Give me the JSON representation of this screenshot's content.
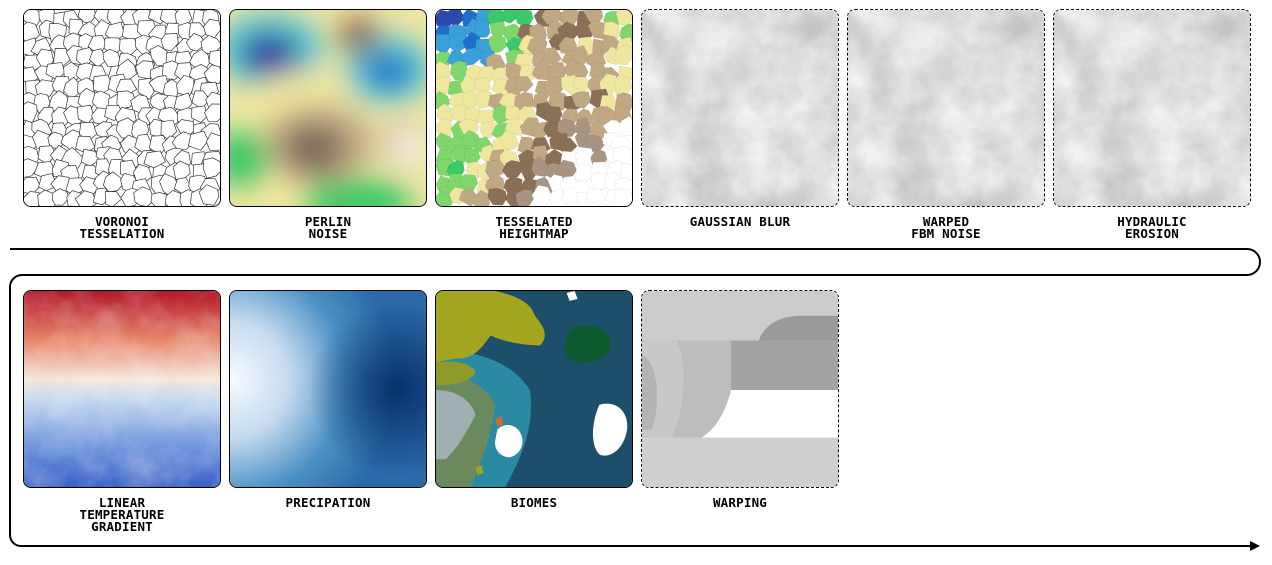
{
  "row1": [
    {
      "id": "voronoi",
      "lines": [
        "VORONOI",
        "TESSELATION"
      ],
      "border": "solid",
      "icon": "voronoi-cells"
    },
    {
      "id": "perlin",
      "lines": [
        "PERLIN",
        "NOISE"
      ],
      "border": "solid",
      "icon": "perlin-noise-terrain"
    },
    {
      "id": "tesselated",
      "lines": [
        "TESSELATED",
        "HEIGHTMAP"
      ],
      "border": "solid",
      "icon": "tesselated-heightmap"
    },
    {
      "id": "gaussian",
      "lines": [
        "GAUSSIAN BLUR"
      ],
      "border": "dashed",
      "icon": "grayscale-clouds"
    },
    {
      "id": "warped",
      "lines": [
        "WARPED",
        "FBM NOISE"
      ],
      "border": "dashed",
      "icon": "grayscale-clouds"
    },
    {
      "id": "hydraulic",
      "lines": [
        "HYDRAULIC",
        "EROSION"
      ],
      "border": "dashed",
      "icon": "grayscale-clouds"
    }
  ],
  "row2": [
    {
      "id": "temperature",
      "lines": [
        "LINEAR",
        "TEMPERATURE",
        "GRADIENT"
      ],
      "border": "solid",
      "icon": "temperature-map"
    },
    {
      "id": "precipation",
      "lines": [
        "PRECIPATION"
      ],
      "border": "solid",
      "icon": "precipitation-gradient"
    },
    {
      "id": "biomes",
      "lines": [
        "BIOMES"
      ],
      "border": "solid",
      "icon": "biome-map"
    },
    {
      "id": "warping",
      "lines": [
        "WARPING"
      ],
      "border": "dashed",
      "icon": "warping-shapes"
    }
  ],
  "colors": {
    "ink": "#000000",
    "terrain_low": "#2b3a9c",
    "terrain_high": "#ffffff",
    "biome_ocean": "#1d4f6a"
  }
}
